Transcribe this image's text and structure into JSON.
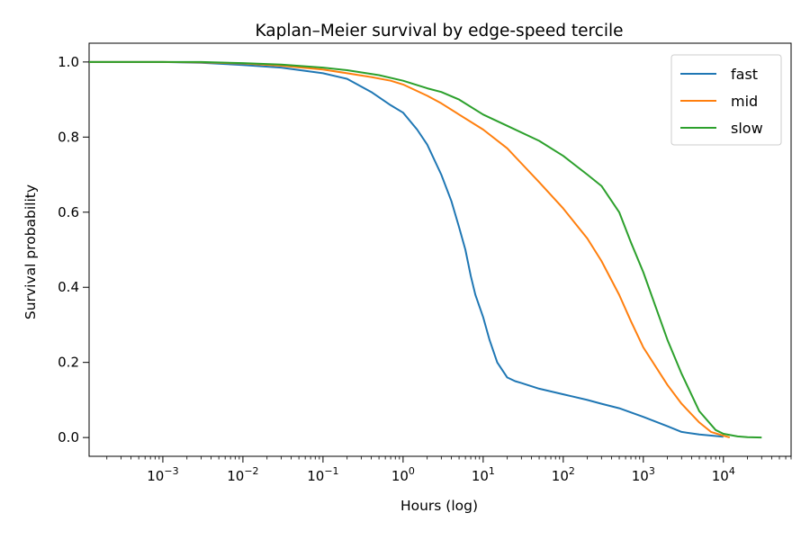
{
  "chart_data": {
    "type": "line",
    "title": "Kaplan–Meier survival by edge-speed tercile",
    "xlabel": "Hours (log)",
    "ylabel": "Survival probability",
    "xscale": "log",
    "xlim": [
      0.00012,
      70000
    ],
    "ylim": [
      -0.05,
      1.05
    ],
    "x_ticks": [
      {
        "value": 0.001,
        "mant": "10",
        "exp": "−3"
      },
      {
        "value": 0.01,
        "mant": "10",
        "exp": "−2"
      },
      {
        "value": 0.1,
        "mant": "10",
        "exp": "−1"
      },
      {
        "value": 1,
        "mant": "10",
        "exp": "0"
      },
      {
        "value": 10,
        "mant": "10",
        "exp": "1"
      },
      {
        "value": 100,
        "mant": "10",
        "exp": "2"
      },
      {
        "value": 1000,
        "mant": "10",
        "exp": "3"
      },
      {
        "value": 10000,
        "mant": "10",
        "exp": "4"
      }
    ],
    "y_ticks": [
      {
        "value": 0.0,
        "label": "0.0"
      },
      {
        "value": 0.2,
        "label": "0.2"
      },
      {
        "value": 0.4,
        "label": "0.4"
      },
      {
        "value": 0.6,
        "label": "0.6"
      },
      {
        "value": 0.8,
        "label": "0.8"
      },
      {
        "value": 1.0,
        "label": "1.0"
      }
    ],
    "grid": false,
    "legend_position": "top-right",
    "series": [
      {
        "name": "fast",
        "color": "#1f77b4",
        "x": [
          0.00012,
          0.001,
          0.003,
          0.01,
          0.03,
          0.1,
          0.2,
          0.4,
          0.7,
          1,
          1.5,
          2,
          3,
          4,
          5,
          6,
          7,
          8,
          10,
          12,
          15,
          20,
          25,
          30,
          50,
          100,
          200,
          300,
          500,
          1000,
          2000,
          3000,
          5000,
          10000
        ],
        "y": [
          1.0,
          1.0,
          0.998,
          0.992,
          0.985,
          0.97,
          0.955,
          0.92,
          0.885,
          0.865,
          0.82,
          0.78,
          0.7,
          0.63,
          0.56,
          0.5,
          0.43,
          0.38,
          0.32,
          0.26,
          0.2,
          0.16,
          0.15,
          0.145,
          0.13,
          0.115,
          0.1,
          0.09,
          0.078,
          0.055,
          0.03,
          0.015,
          0.008,
          0.002
        ]
      },
      {
        "name": "mid",
        "color": "#ff7f0e",
        "x": [
          0.00012,
          0.001,
          0.003,
          0.01,
          0.03,
          0.1,
          0.2,
          0.4,
          0.7,
          1,
          2,
          3,
          5,
          10,
          20,
          30,
          50,
          100,
          200,
          300,
          500,
          700,
          1000,
          2000,
          3000,
          5000,
          7000,
          10000,
          12000
        ],
        "y": [
          1.0,
          1.0,
          0.999,
          0.996,
          0.99,
          0.98,
          0.97,
          0.96,
          0.95,
          0.94,
          0.91,
          0.89,
          0.86,
          0.82,
          0.77,
          0.73,
          0.68,
          0.61,
          0.53,
          0.47,
          0.38,
          0.31,
          0.24,
          0.14,
          0.09,
          0.04,
          0.015,
          0.005,
          0.0
        ]
      },
      {
        "name": "slow",
        "color": "#2ca02c",
        "x": [
          0.00012,
          0.001,
          0.003,
          0.01,
          0.03,
          0.1,
          0.2,
          0.5,
          1,
          2,
          3,
          5,
          10,
          20,
          50,
          100,
          200,
          300,
          500,
          700,
          1000,
          2000,
          3000,
          5000,
          8000,
          10000,
          15000,
          20000,
          30000
        ],
        "y": [
          1.0,
          1.0,
          1.0,
          0.997,
          0.993,
          0.985,
          0.978,
          0.965,
          0.95,
          0.93,
          0.92,
          0.9,
          0.86,
          0.83,
          0.79,
          0.75,
          0.7,
          0.67,
          0.6,
          0.52,
          0.44,
          0.26,
          0.17,
          0.07,
          0.02,
          0.01,
          0.003,
          0.001,
          0.0
        ]
      }
    ]
  }
}
